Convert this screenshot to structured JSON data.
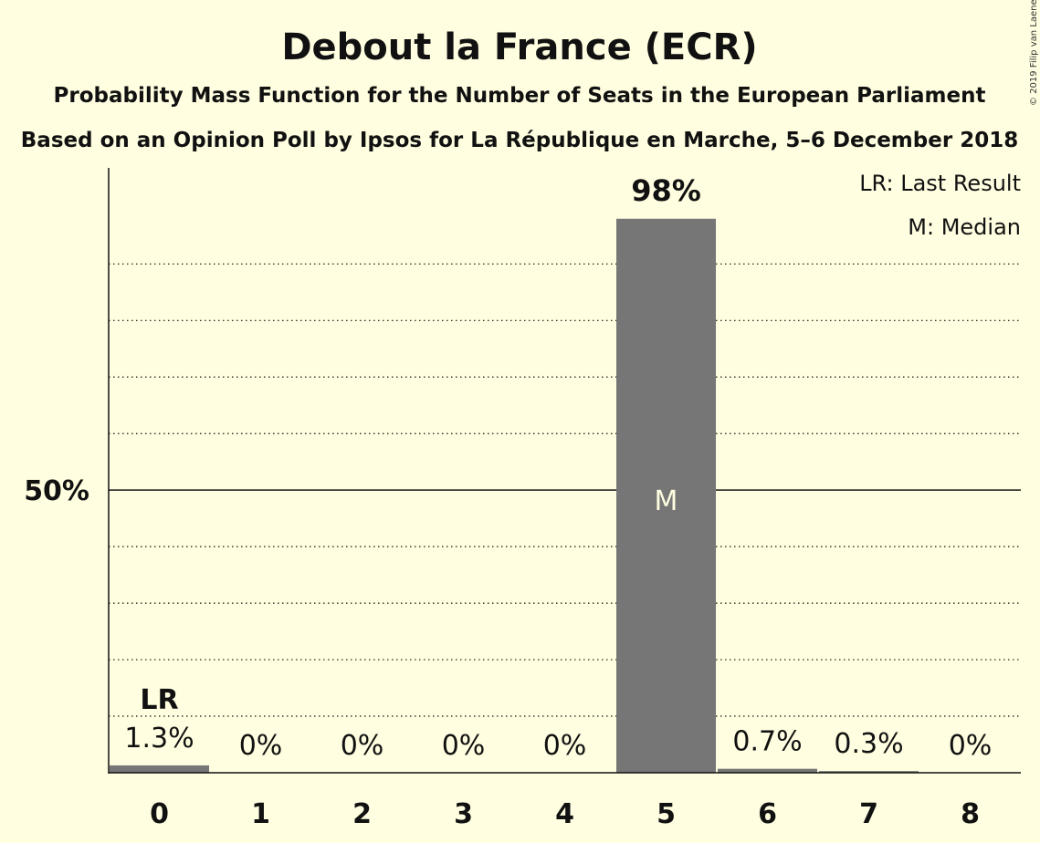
{
  "chart_data": {
    "type": "bar",
    "title": "Debout la France (ECR)",
    "subtitle_lines": [
      "Probability Mass Function for the Number of Seats in the European Parliament",
      "Based on an Opinion Poll by Ipsos for La République en Marche, 5–6 December 2018"
    ],
    "categories": [
      "0",
      "1",
      "2",
      "3",
      "4",
      "5",
      "6",
      "7",
      "8"
    ],
    "values": [
      1.3,
      0,
      0,
      0,
      0,
      98,
      0.7,
      0.3,
      0
    ],
    "value_labels": [
      "1.3%",
      "0%",
      "0%",
      "0%",
      "0%",
      "98%",
      "0.7%",
      "0.3%",
      "0%"
    ],
    "ylim": [
      0,
      107
    ],
    "y_tick_labels": [
      {
        "value": 50,
        "label": "50%"
      }
    ],
    "y_gridlines": [
      10,
      20,
      30,
      40,
      60,
      70,
      80,
      90
    ],
    "grid": true,
    "bar_color": "#767676",
    "last_result": {
      "category": "0",
      "label": "LR"
    },
    "median": {
      "category": "5",
      "label": "M"
    },
    "legend": {
      "placement": "top-right",
      "entries": [
        "LR: Last Result",
        "M: Median"
      ]
    },
    "copyright": "© 2019 Filip van Laenen"
  }
}
